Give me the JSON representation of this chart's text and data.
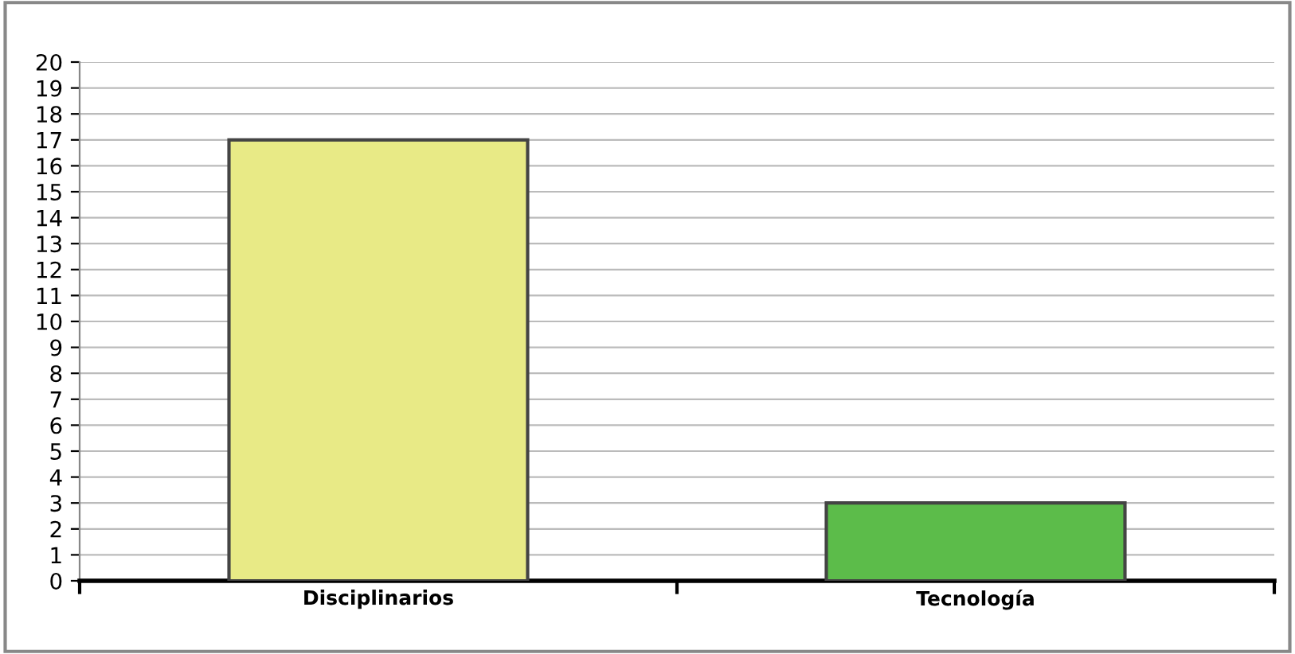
{
  "chart_data": {
    "type": "bar",
    "categories": [
      "Disciplinarios",
      "Tecnología"
    ],
    "values": [
      17,
      3
    ],
    "colors": [
      "#e8ea86",
      "#5cbc4a"
    ],
    "ylim": [
      0,
      20
    ],
    "yticks": [
      0,
      1,
      2,
      3,
      4,
      5,
      6,
      7,
      8,
      9,
      10,
      11,
      12,
      13,
      14,
      15,
      16,
      17,
      18,
      19,
      20
    ],
    "grid": "y"
  }
}
